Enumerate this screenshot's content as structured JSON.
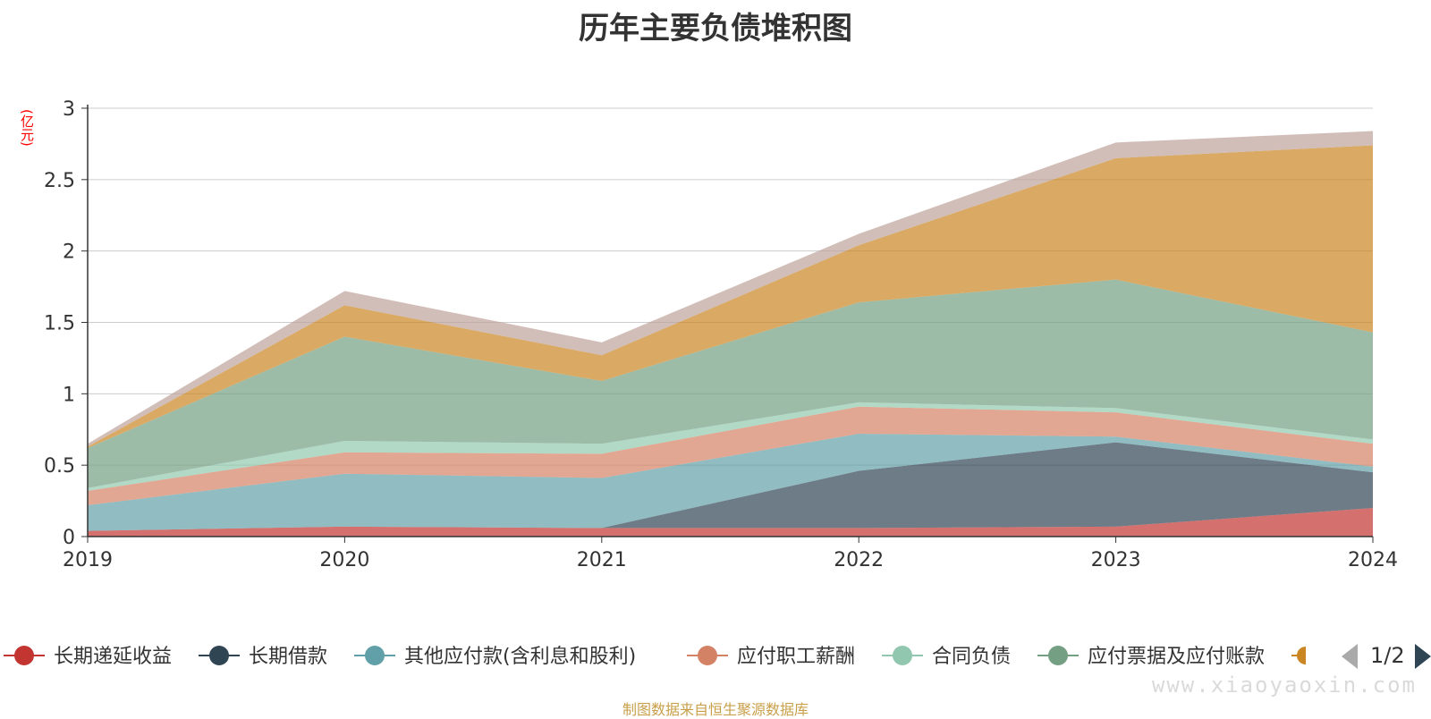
{
  "chart_data": {
    "type": "area",
    "title": "历年主要负债堆积图",
    "ylabel": "(亿元)",
    "xlabel": "",
    "x": [
      "2019",
      "2020",
      "2021",
      "2022",
      "2023",
      "2024"
    ],
    "ylim": [
      0,
      3
    ],
    "yticks": [
      "0",
      "0.5",
      "1",
      "1.5",
      "2",
      "2.5",
      "3"
    ],
    "grid": true,
    "stacked": true,
    "series": [
      {
        "name": "长期递延收益",
        "color": "#c23531",
        "values": [
          0.04,
          0.07,
          0.06,
          0.06,
          0.07,
          0.2
        ]
      },
      {
        "name": "长期借款",
        "color": "#2f4554",
        "values": [
          0.0,
          0.0,
          0.0,
          0.4,
          0.59,
          0.25
        ]
      },
      {
        "name": "其他应付款(含利息和股利)",
        "color": "#61a0a8",
        "values": [
          0.18,
          0.37,
          0.35,
          0.26,
          0.04,
          0.04
        ]
      },
      {
        "name": "应付职工薪酬",
        "color": "#d48265",
        "values": [
          0.1,
          0.15,
          0.17,
          0.19,
          0.17,
          0.16
        ]
      },
      {
        "name": "合同负债",
        "color": "#91c7ae",
        "values": [
          0.02,
          0.08,
          0.07,
          0.03,
          0.03,
          0.03
        ]
      },
      {
        "name": "应付票据及应付账款",
        "color": "#749f83",
        "values": [
          0.28,
          0.73,
          0.44,
          0.7,
          0.9,
          0.75
        ]
      },
      {
        "name": "",
        "color": "#ca8622",
        "values": [
          0.01,
          0.22,
          0.18,
          0.4,
          0.85,
          1.31
        ]
      },
      {
        "name": "",
        "color": "#bda29a",
        "values": [
          0.02,
          0.1,
          0.09,
          0.08,
          0.11,
          0.1
        ]
      }
    ],
    "legend": {
      "position": "bottom",
      "page": "1/2"
    }
  },
  "footer": {
    "source": "制图数据来自恒生聚源数据库",
    "watermark": "www.xiaoyaoxin.com"
  }
}
